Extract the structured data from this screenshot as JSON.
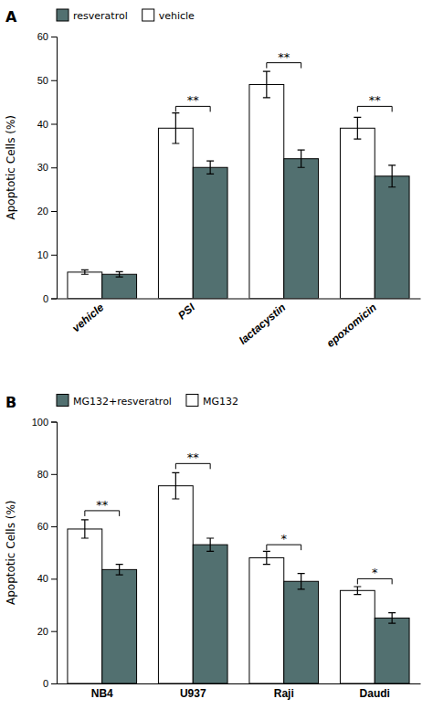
{
  "chart_data": [
    {
      "type": "bar",
      "title": "A",
      "categories": [
        "vehicle",
        "PSI",
        "lactacystin",
        "epoxomicin"
      ],
      "series": [
        {
          "name": "vehicle",
          "color": "#ffffff",
          "values": [
            6.0,
            39.0,
            49.0,
            39.0
          ],
          "errors": [
            0.5,
            3.5,
            3.0,
            2.5
          ]
        },
        {
          "name": "resveratrol",
          "color": "#527070",
          "values": [
            5.5,
            30.0,
            32.0,
            28.0
          ],
          "errors": [
            0.6,
            1.5,
            2.0,
            2.5
          ]
        }
      ],
      "y_label": "Apoptotic Cells (%)",
      "ylim": [
        0,
        60
      ],
      "yticks": [
        0,
        10,
        20,
        30,
        40,
        50,
        60
      ],
      "annotations": [
        {
          "text": "**",
          "category": "PSI",
          "y": 44
        },
        {
          "text": "**",
          "category": "lactacystin",
          "y": 54
        },
        {
          "text": "**",
          "category": "epoxomicin",
          "y": 44
        }
      ],
      "legend": "upper left",
      "grid": false
    },
    {
      "type": "bar",
      "title": "B",
      "categories": [
        "NB4",
        "U937",
        "Raji",
        "Daudi"
      ],
      "series": [
        {
          "name": "MG132",
          "color": "#ffffff",
          "values": [
            59.0,
            75.5,
            48.0,
            35.5
          ],
          "errors": [
            3.5,
            5.0,
            2.5,
            1.5
          ]
        },
        {
          "name": "MG132+resveratrol",
          "color": "#527070",
          "values": [
            43.5,
            53.0,
            39.0,
            25.0
          ],
          "errors": [
            2.0,
            2.5,
            3.0,
            2.0
          ]
        }
      ],
      "y_label": "Apoptotic Cells (%)",
      "ylim": [
        0,
        100
      ],
      "yticks": [
        0,
        20,
        40,
        60,
        80,
        100
      ],
      "annotations": [
        {
          "text": "**",
          "category": "NB4",
          "y": 66
        },
        {
          "text": "**",
          "category": "U937",
          "y": 84
        },
        {
          "text": "*",
          "category": "Raji",
          "y": 53
        },
        {
          "text": "*",
          "category": "Daudi",
          "y": 40
        }
      ],
      "legend": "upper left",
      "grid": false
    }
  ]
}
